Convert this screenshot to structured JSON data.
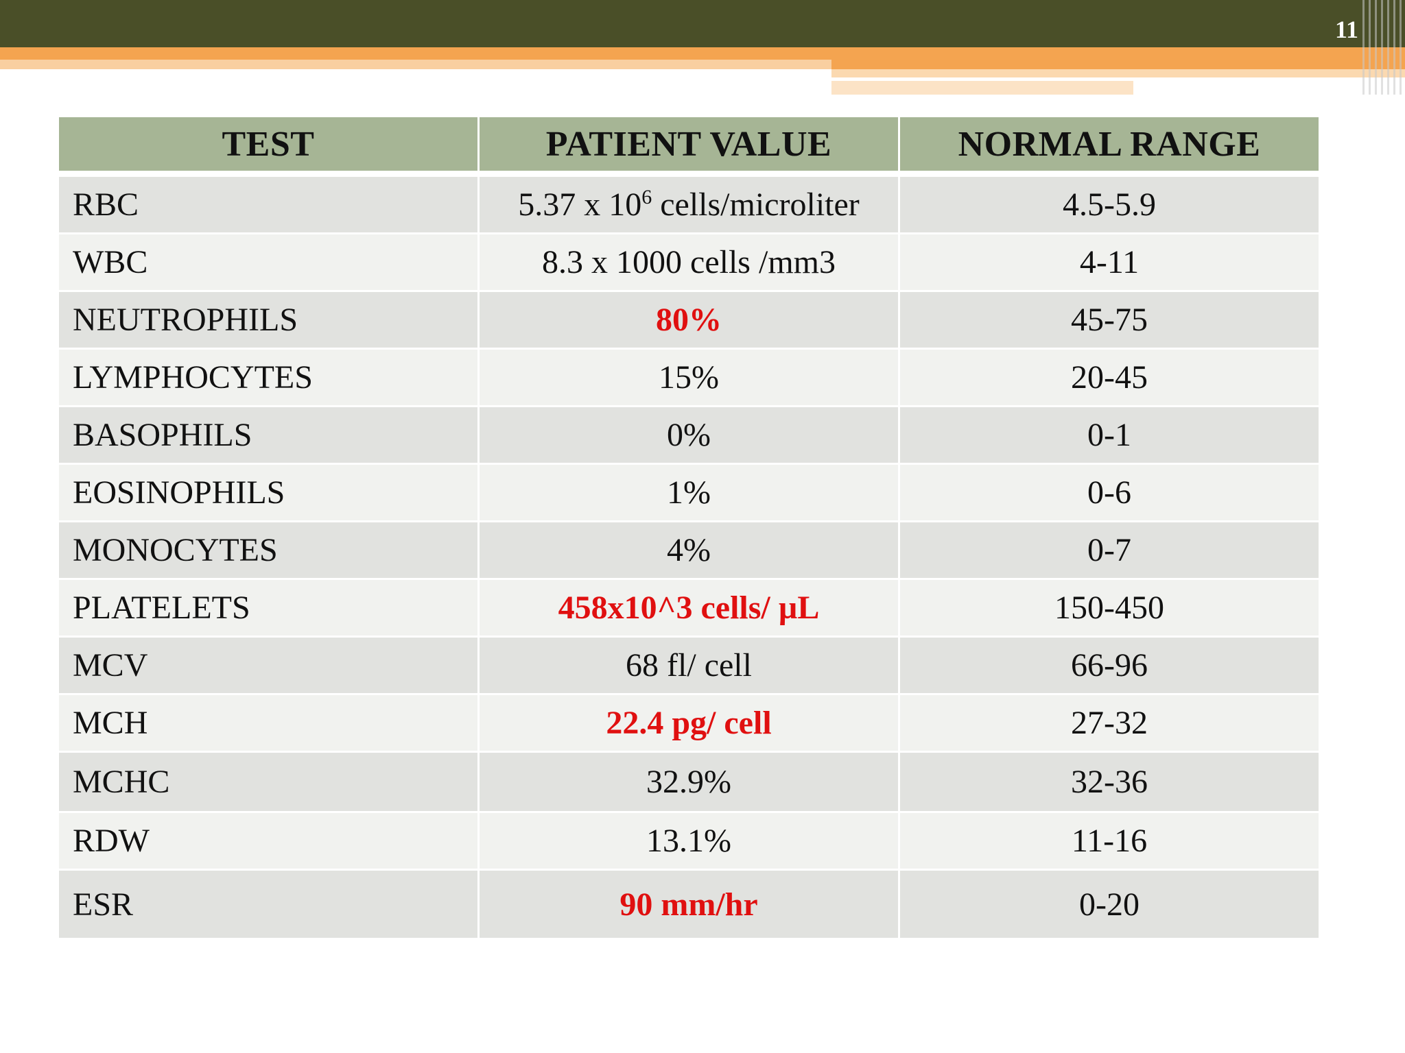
{
  "slide_number": "11",
  "colors": {
    "header_band": "#4a4f28",
    "accent_band": "#f4a450",
    "table_header": "#a6b595",
    "row_odd": "#e1e2df",
    "row_even": "#f1f2ef",
    "abnormal_text": "#e01010"
  },
  "table": {
    "headers": [
      "TEST",
      "PATIENT VALUE",
      "NORMAL RANGE"
    ],
    "rows": [
      {
        "test": "RBC",
        "value_prefix": "5.37 x 10",
        "value_sup": "6",
        "value_suffix": " cells/microliter",
        "range": "4.5-5.9",
        "abnormal": false
      },
      {
        "test": "WBC",
        "value": "8.3 x 1000 cells /mm3",
        "range": "4-11",
        "abnormal": false
      },
      {
        "test": "NEUTROPHILS",
        "value": "80%",
        "range": "45-75",
        "abnormal": true
      },
      {
        "test": "LYMPHOCYTES",
        "value": "15%",
        "range": "20-45",
        "abnormal": false
      },
      {
        "test": "BASOPHILS",
        "value": "0%",
        "range": "0-1",
        "abnormal": false
      },
      {
        "test": "EOSINOPHILS",
        "value": "1%",
        "range": "0-6",
        "abnormal": false
      },
      {
        "test": "MONOCYTES",
        "value": "4%",
        "range": "0-7",
        "abnormal": false
      },
      {
        "test": "PLATELETS",
        "value": "458x10^3 cells/ µL",
        "range": "150-450",
        "abnormal": true
      },
      {
        "test": "MCV",
        "value": "68 fl/ cell",
        "range": "66-96",
        "abnormal": false
      },
      {
        "test": "MCH",
        "value": "22.4 pg/ cell",
        "range": "27-32",
        "abnormal": true
      },
      {
        "test": "MCHC",
        "value": "32.9%",
        "range": "32-36",
        "abnormal": false
      },
      {
        "test": "RDW",
        "value": "13.1%",
        "range": "11-16",
        "abnormal": false
      },
      {
        "test": "ESR",
        "value": "90 mm/hr",
        "range": "0-20",
        "abnormal": true
      }
    ]
  }
}
